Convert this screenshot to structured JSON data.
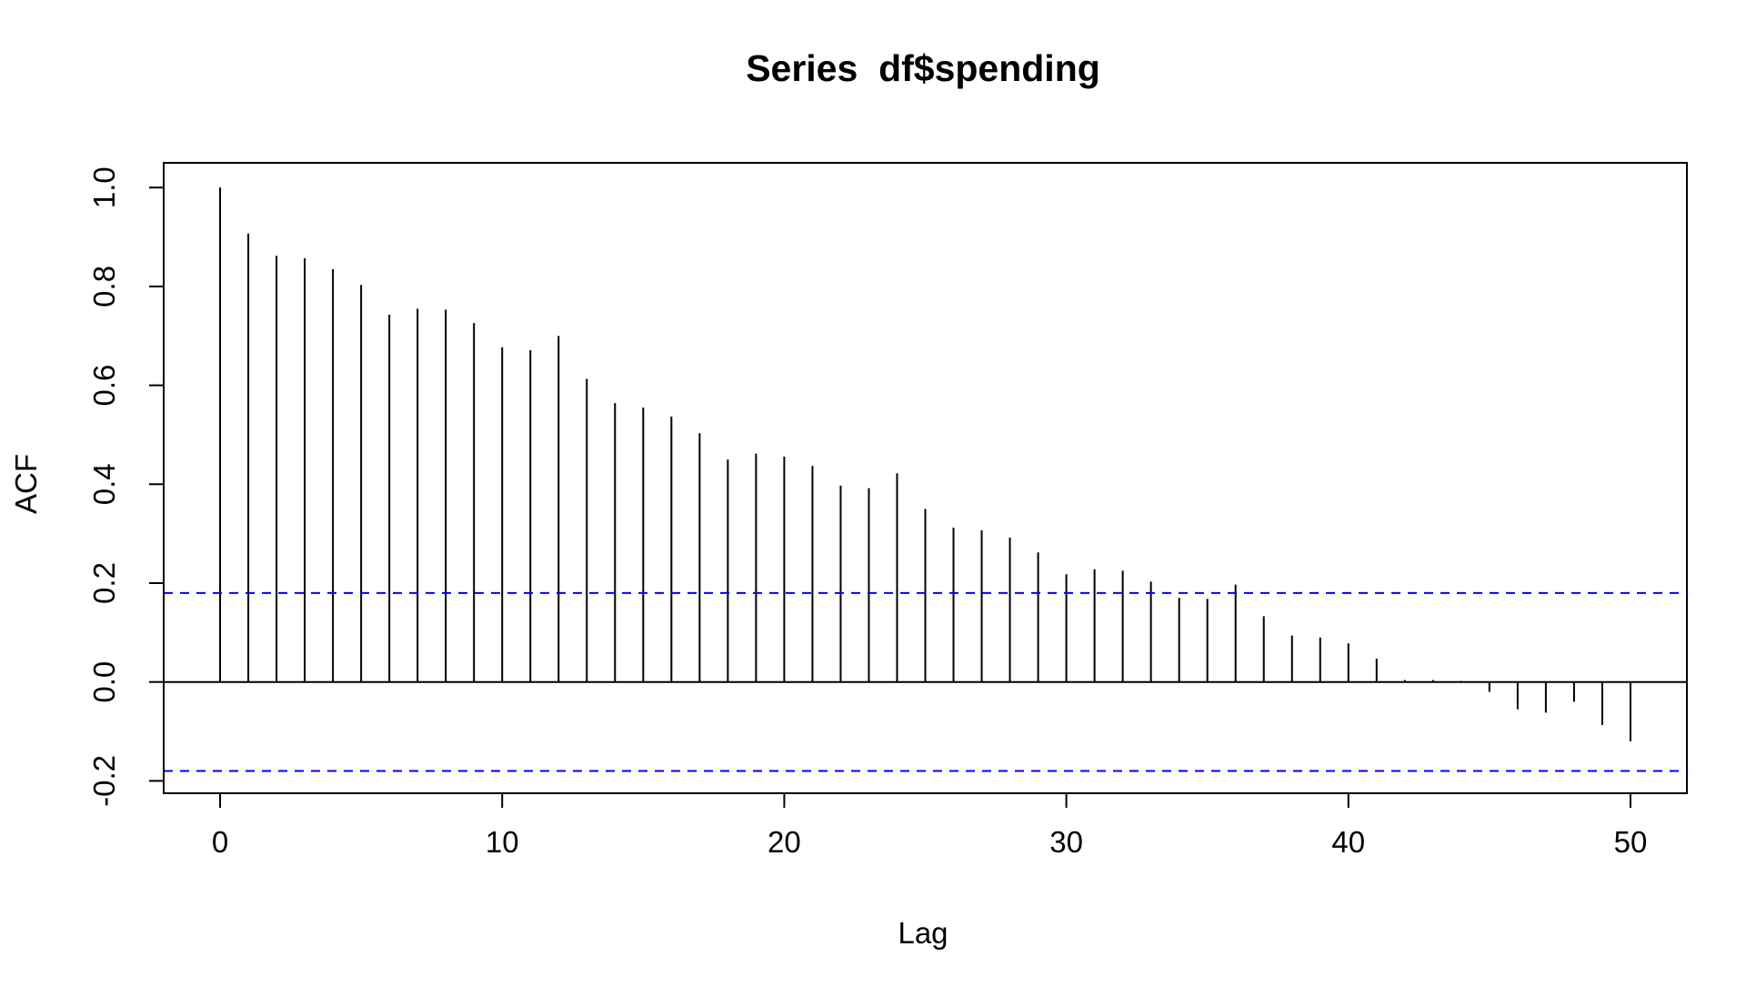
{
  "chart_data": {
    "type": "bar",
    "subtype": "acf",
    "title": "Series  df$spending",
    "xlabel": "Lag",
    "ylabel": "ACF",
    "xlim": [
      -2,
      52
    ],
    "ylim": [
      -0.225,
      1.05
    ],
    "x_ticks": [
      0,
      10,
      20,
      30,
      40,
      50
    ],
    "x_tick_labels": [
      "0",
      "10",
      "20",
      "30",
      "40",
      "50"
    ],
    "y_ticks": [
      -0.2,
      0.0,
      0.2,
      0.4,
      0.6,
      0.8,
      1.0
    ],
    "y_tick_labels": [
      "-0.2",
      "0.0",
      "0.2",
      "0.4",
      "0.6",
      "0.8",
      "1.0"
    ],
    "lags": [
      0,
      1,
      2,
      3,
      4,
      5,
      6,
      7,
      8,
      9,
      10,
      11,
      12,
      13,
      14,
      15,
      16,
      17,
      18,
      19,
      20,
      21,
      22,
      23,
      24,
      25,
      26,
      27,
      28,
      29,
      30,
      31,
      32,
      33,
      34,
      35,
      36,
      37,
      38,
      39,
      40,
      41,
      42,
      43,
      44,
      45,
      46,
      47,
      48,
      49,
      50
    ],
    "values": [
      1.0,
      0.907,
      0.862,
      0.857,
      0.835,
      0.803,
      0.743,
      0.755,
      0.753,
      0.726,
      0.677,
      0.671,
      0.7,
      0.613,
      0.564,
      0.555,
      0.537,
      0.503,
      0.45,
      0.462,
      0.456,
      0.437,
      0.397,
      0.392,
      0.422,
      0.35,
      0.312,
      0.307,
      0.292,
      0.262,
      0.218,
      0.228,
      0.225,
      0.203,
      0.17,
      0.168,
      0.197,
      0.133,
      0.094,
      0.09,
      0.078,
      0.047,
      0.004,
      0.004,
      0.002,
      -0.02,
      -0.055,
      -0.062,
      -0.04,
      -0.087,
      -0.12
    ],
    "confidence_bound": 0.18,
    "grid": false,
    "colors": {
      "bars": "#000000",
      "zero_line": "#000000",
      "confidence": "#0000ff"
    }
  }
}
